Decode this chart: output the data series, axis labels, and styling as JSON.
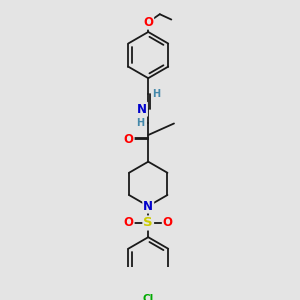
{
  "background_color": "#e4e4e4",
  "bond_color": "#1a1a1a",
  "bond_width": 1.3,
  "atom_colors": {
    "O": "#ff0000",
    "N": "#0000cc",
    "S": "#cccc00",
    "Cl": "#00aa00",
    "H": "#4488aa",
    "C": "#1a1a1a"
  },
  "font_size": 7.5
}
